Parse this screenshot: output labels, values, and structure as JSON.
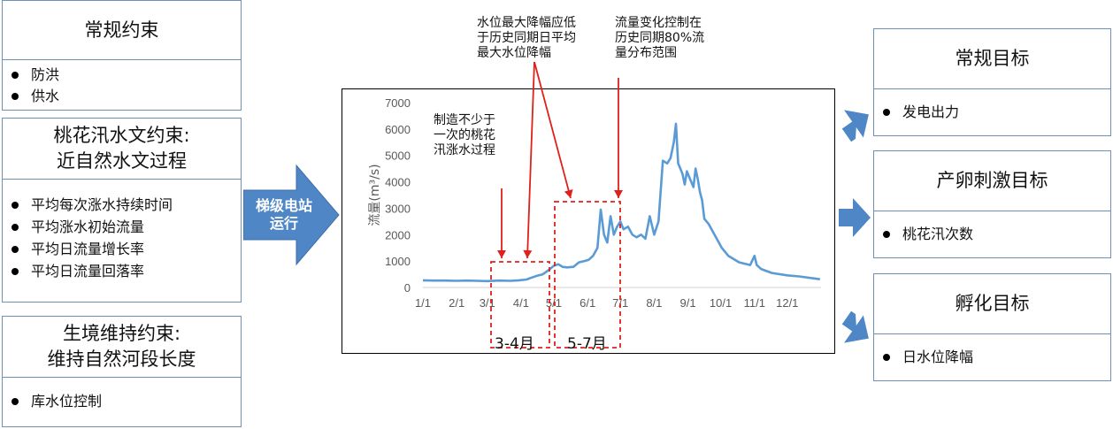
{
  "left": {
    "conventional": {
      "title": "常规约束",
      "items": [
        "防洪",
        "供水"
      ]
    },
    "peach": {
      "title_lines": [
        "桃花汛水文约束:",
        "近自然水文过程"
      ],
      "items": [
        "平均每次涨水持续时间",
        "平均涨水初始流量",
        "平均日流量增长率",
        "平均日流量回落率"
      ]
    },
    "habitat": {
      "title_lines": [
        "生境维持约束:",
        "维持自然河段长度"
      ],
      "items": [
        "库水位控制"
      ]
    }
  },
  "center_arrow": {
    "lines": [
      "梯级电站",
      "运行"
    ]
  },
  "annotations": {
    "top1": [
      "水位最大降幅应低",
      "于历史同期日平均",
      "最大水位降幅"
    ],
    "top2": [
      "流量变化控制在",
      "历史同期80%流",
      "量分布范围"
    ],
    "inner": [
      "制造不少于",
      "一次的桃花",
      "汛涨水过程"
    ]
  },
  "month_labels": {
    "m34": "3-4月",
    "m57": "5-7月"
  },
  "right": {
    "conventional": {
      "title": "常规目标",
      "items": [
        "发电出力"
      ]
    },
    "spawn": {
      "title": "产卵刺激目标",
      "items": [
        "桃花汛次数"
      ]
    },
    "hatch": {
      "title": "孵化目标",
      "items": [
        "日水位降幅"
      ]
    }
  },
  "colors": {
    "line": "#5b9bd5",
    "arrow": "#4f86c6",
    "dash": "#e0201b",
    "box_border": "#6f90b8"
  },
  "chart_data": {
    "type": "line",
    "ylabel": "流量(m³/s)",
    "ylim": [
      0,
      7000
    ],
    "yticks": [
      0,
      1000,
      2000,
      3000,
      4000,
      5000,
      6000,
      7000
    ],
    "categories": [
      "1/1",
      "2/1",
      "3/1",
      "4/1",
      "5/1",
      "6/1",
      "7/1",
      "8/1",
      "9/1",
      "10/1",
      "11/1",
      "12/1"
    ],
    "grid": false,
    "series": [
      {
        "x": [
          0,
          10,
          20,
          31,
          40,
          50,
          59,
          70,
          80,
          88,
          95,
          100,
          105,
          110,
          115,
          120,
          124,
          128,
          132,
          138,
          143,
          148,
          152,
          156,
          160,
          163,
          166,
          169,
          172,
          175,
          178,
          181,
          184,
          188,
          192,
          196,
          200,
          204,
          208,
          212,
          216,
          220,
          224,
          227,
          230,
          232,
          234,
          236,
          238,
          240,
          242,
          244,
          246,
          248,
          250,
          252,
          254,
          256,
          258,
          262,
          266,
          270,
          274,
          280,
          290,
          300,
          304,
          306,
          310,
          320,
          334,
          345,
          364
        ],
        "y": [
          270,
          260,
          260,
          250,
          260,
          250,
          240,
          260,
          250,
          270,
          300,
          380,
          450,
          500,
          650,
          820,
          880,
          780,
          760,
          780,
          950,
          1000,
          1050,
          1200,
          1500,
          2950,
          2000,
          1700,
          2700,
          2000,
          2300,
          2500,
          2200,
          2300,
          2000,
          1900,
          2000,
          1850,
          2700,
          2000,
          2500,
          4800,
          4700,
          4900,
          5500,
          6200,
          4700,
          4500,
          4300,
          3900,
          4400,
          4200,
          4000,
          3800,
          4500,
          4100,
          3600,
          3300,
          2600,
          2400,
          2100,
          1800,
          1500,
          1200,
          950,
          850,
          1200,
          850,
          700,
          550,
          460,
          420,
          310
        ]
      }
    ]
  }
}
